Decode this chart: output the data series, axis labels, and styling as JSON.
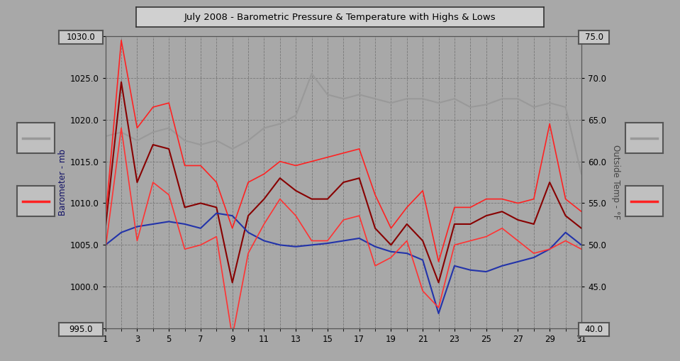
{
  "title": "July 2008 - Barometric Pressure & Temperature with Highs & Lows",
  "bg_color": "#a8a8a8",
  "ylabel_left": "Barometer - mb",
  "ylabel_right": "Outside Temp - °F",
  "ylim_left": [
    995.0,
    1030.0
  ],
  "ylim_right": [
    40.0,
    75.0
  ],
  "yticks_left": [
    995.0,
    1000.0,
    1005.0,
    1010.0,
    1015.0,
    1020.0,
    1025.0,
    1030.0
  ],
  "yticks_right": [
    40.0,
    45.0,
    50.0,
    55.0,
    60.0,
    65.0,
    70.0,
    75.0
  ],
  "xticks": [
    1,
    3,
    5,
    7,
    9,
    11,
    13,
    15,
    17,
    19,
    21,
    23,
    25,
    27,
    29,
    31
  ],
  "pressure_color": "#2233aa",
  "temp_high_color": "#ff2222",
  "temp_low_color": "#ff3333",
  "temp_avg_color": "#880000",
  "outside_temp_color": "#999999",
  "days": [
    1,
    2,
    3,
    4,
    5,
    6,
    7,
    8,
    9,
    10,
    11,
    12,
    13,
    14,
    15,
    16,
    17,
    18,
    19,
    20,
    21,
    22,
    23,
    24,
    25,
    26,
    27,
    28,
    29,
    30,
    31
  ],
  "pressure": [
    1005.0,
    1006.5,
    1007.2,
    1007.5,
    1007.8,
    1007.5,
    1007.0,
    1008.8,
    1008.5,
    1006.5,
    1005.5,
    1005.0,
    1004.8,
    1005.0,
    1005.2,
    1005.5,
    1005.8,
    1004.8,
    1004.2,
    1004.0,
    1003.2,
    996.8,
    1002.5,
    1002.0,
    1001.8,
    1002.5,
    1003.0,
    1003.5,
    1004.5,
    1006.5,
    1005.0
  ],
  "temp_high": [
    1008.0,
    1029.5,
    1019.0,
    1021.5,
    1022.0,
    1014.5,
    1014.5,
    1012.5,
    1007.0,
    1012.5,
    1013.5,
    1015.0,
    1014.5,
    1015.0,
    1015.5,
    1016.0,
    1016.5,
    1011.0,
    1007.0,
    1009.5,
    1011.5,
    1003.0,
    1009.5,
    1009.5,
    1010.5,
    1010.5,
    1010.0,
    1010.5,
    1019.5,
    1010.5,
    1009.0
  ],
  "temp_low": [
    1004.5,
    1019.0,
    1005.5,
    1012.5,
    1011.0,
    1004.5,
    1005.0,
    1006.0,
    994.0,
    1004.0,
    1007.5,
    1010.5,
    1008.5,
    1005.5,
    1005.5,
    1008.0,
    1008.5,
    1002.5,
    1003.5,
    1005.5,
    999.5,
    997.5,
    1005.0,
    1005.5,
    1006.0,
    1007.0,
    1005.5,
    1004.0,
    1004.5,
    1005.5,
    1004.5
  ],
  "temp_avg": [
    1007.0,
    1024.5,
    1012.5,
    1017.0,
    1016.5,
    1009.5,
    1010.0,
    1009.5,
    1000.5,
    1008.5,
    1010.5,
    1013.0,
    1011.5,
    1010.5,
    1010.5,
    1012.5,
    1013.0,
    1007.0,
    1005.0,
    1007.5,
    1005.5,
    1000.5,
    1007.5,
    1007.5,
    1008.5,
    1009.0,
    1008.0,
    1007.5,
    1012.5,
    1008.5,
    1007.0
  ],
  "outside_temp": [
    1018.0,
    1018.5,
    1017.5,
    1018.5,
    1019.0,
    1017.5,
    1017.0,
    1017.5,
    1016.5,
    1017.5,
    1019.0,
    1019.5,
    1020.5,
    1025.5,
    1023.0,
    1022.5,
    1023.0,
    1022.5,
    1022.0,
    1022.5,
    1022.5,
    1022.0,
    1022.5,
    1021.5,
    1021.8,
    1022.5,
    1022.5,
    1021.5,
    1022.0,
    1021.5,
    1013.5
  ]
}
